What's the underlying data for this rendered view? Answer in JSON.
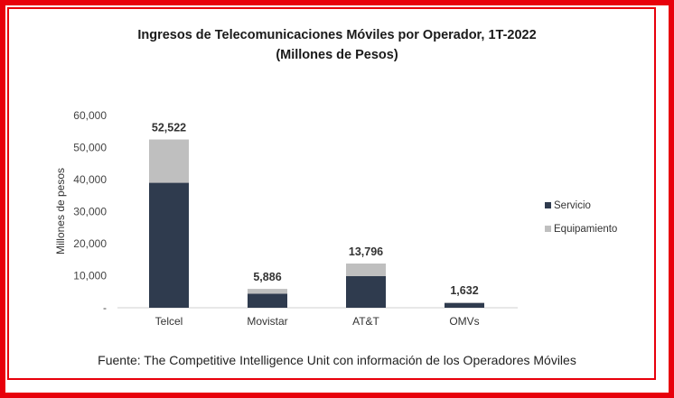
{
  "chart_data": {
    "type": "bar",
    "stacked": true,
    "title": "Ingresos de Telecomunicaciones Móviles por Operador, 1T-2022",
    "subtitle": "(Millones de Pesos)",
    "ylabel": "Millones de pesos",
    "xlabel": "",
    "ylim": [
      0,
      60000
    ],
    "yticks": [
      "-",
      "10,000",
      "20,000",
      "30,000",
      "40,000",
      "50,000",
      "60,000"
    ],
    "categories": [
      "Telcel",
      "Movistar",
      "AT&T",
      "OMVs"
    ],
    "series": [
      {
        "name": "Servicio",
        "color": "#2f3b4e",
        "values": [
          39000,
          4400,
          9900,
          1500
        ]
      },
      {
        "name": "Equipamiento",
        "color": "#bfbfbf",
        "values": [
          13522,
          1486,
          3896,
          132
        ]
      }
    ],
    "totals": [
      "52,522",
      "5,886",
      "13,796",
      "1,632"
    ],
    "legend_position": "right",
    "grid": false
  },
  "source": "Fuente: The Competitive Intelligence Unit con información de los Operadores Móviles"
}
